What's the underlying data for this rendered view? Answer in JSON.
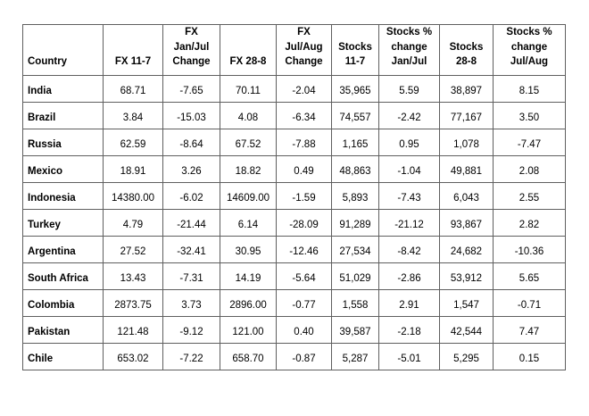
{
  "chart_data": {
    "type": "table",
    "columns": [
      "Country",
      "FX 11-7",
      "FX\nJan/Jul\nChange",
      "FX 28-8",
      "FX\nJul/Aug\nChange",
      "Stocks\n11-7",
      "Stocks %\nchange\nJan/Jul",
      "Stocks\n28-8",
      "Stocks %\nchange\nJul/Aug"
    ],
    "rows": [
      [
        "India",
        "68.71",
        "-7.65",
        "70.11",
        "-2.04",
        "35,965",
        "5.59",
        "38,897",
        "8.15"
      ],
      [
        "Brazil",
        "3.84",
        "-15.03",
        "4.08",
        "-6.34",
        "74,557",
        "-2.42",
        "77,167",
        "3.50"
      ],
      [
        "Russia",
        "62.59",
        "-8.64",
        "67.52",
        "-7.88",
        "1,165",
        "0.95",
        "1,078",
        "-7.47"
      ],
      [
        "Mexico",
        "18.91",
        "3.26",
        "18.82",
        "0.49",
        "48,863",
        "-1.04",
        "49,881",
        "2.08"
      ],
      [
        "Indonesia",
        "14380.00",
        "-6.02",
        "14609.00",
        "-1.59",
        "5,893",
        "-7.43",
        "6,043",
        "2.55"
      ],
      [
        "Turkey",
        "4.79",
        "-21.44",
        "6.14",
        "-28.09",
        "91,289",
        "-21.12",
        "93,867",
        "2.82"
      ],
      [
        "Argentina",
        "27.52",
        "-32.41",
        "30.95",
        "-12.46",
        "27,534",
        "-8.42",
        "24,682",
        "-10.36"
      ],
      [
        "South Africa",
        "13.43",
        "-7.31",
        "14.19",
        "-5.64",
        "51,029",
        "-2.86",
        "53,912",
        "5.65"
      ],
      [
        "Colombia",
        "2873.75",
        "3.73",
        "2896.00",
        "-0.77",
        "1,558",
        "2.91",
        "1,547",
        "-0.71"
      ],
      [
        "Pakistan",
        "121.48",
        "-9.12",
        "121.00",
        "0.40",
        "39,587",
        "-2.18",
        "42,544",
        "7.47"
      ],
      [
        "Chile",
        "653.02",
        "-7.22",
        "658.70",
        "-0.87",
        "5,287",
        "-5.01",
        "5,295",
        "0.15"
      ]
    ]
  }
}
